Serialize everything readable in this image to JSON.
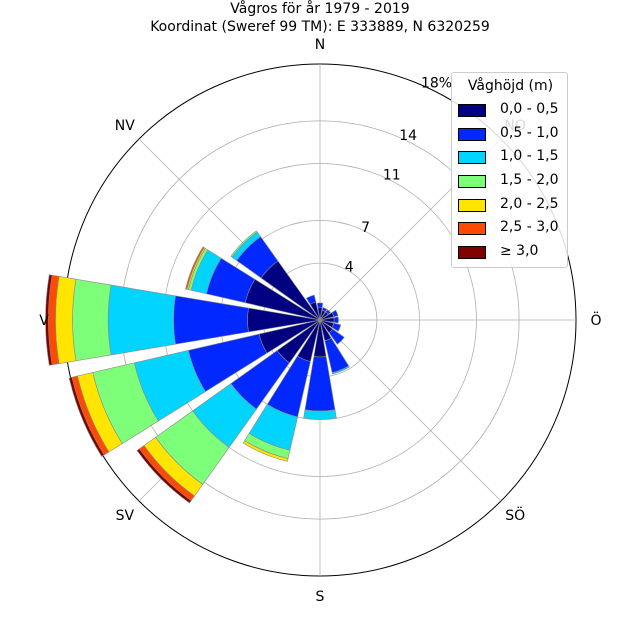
{
  "header": {
    "title": "Vågros för år 1979 - 2019",
    "subtitle": "Koordinat (Sweref 99 TM): E 333889, N 6320259"
  },
  "legend": {
    "title": "Våghöjd (m)",
    "items": [
      {
        "label": "0,0 - 0,5",
        "color": "#000080"
      },
      {
        "label": "0,5 - 1,0",
        "color": "#0028ff"
      },
      {
        "label": "1,0 - 1,5",
        "color": "#00d4ff"
      },
      {
        "label": "1,5 - 2,0",
        "color": "#7dff7a"
      },
      {
        "label": "2,0 - 2,5",
        "color": "#ffe500"
      },
      {
        "label": "2,5 - 3,0",
        "color": "#ff4a00"
      },
      {
        "label": "≥ 3,0",
        "color": "#800000"
      }
    ]
  },
  "chart_data": {
    "type": "windrose",
    "rmax": 18,
    "radial_ticks": [
      {
        "value": 4,
        "label": "4"
      },
      {
        "value": 7,
        "label": "7"
      },
      {
        "value": 11,
        "label": "11"
      },
      {
        "value": 14,
        "label": "14"
      },
      {
        "value": 18,
        "label": "18%"
      }
    ],
    "direction_labels": [
      {
        "angle": 0,
        "label": "N"
      },
      {
        "angle": 45,
        "label": "NO"
      },
      {
        "angle": 90,
        "label": "Ö"
      },
      {
        "angle": 135,
        "label": "SÖ"
      },
      {
        "angle": 180,
        "label": "S"
      },
      {
        "angle": 225,
        "label": "SV"
      },
      {
        "angle": 270,
        "label": "V"
      },
      {
        "angle": 315,
        "label": "NV"
      }
    ],
    "bin_width_deg": 22.5,
    "sector_width_deg": 19,
    "series": [
      "0,0 - 0,5",
      "0,5 - 1,0",
      "1,0 - 1,5",
      "1,5 - 2,0",
      "2,0 - 2,5",
      "2,5 - 3,0",
      "≥ 3,0"
    ],
    "bins": [
      {
        "direction": 0,
        "values": [
          0.9,
          0.3,
          0,
          0,
          0,
          0,
          0
        ]
      },
      {
        "direction": 22.5,
        "values": [
          0.7,
          0.2,
          0,
          0,
          0,
          0,
          0
        ]
      },
      {
        "direction": 45,
        "values": [
          0.7,
          0.2,
          0,
          0,
          0,
          0,
          0
        ]
      },
      {
        "direction": 67.5,
        "values": [
          1.0,
          0.3,
          0,
          0,
          0,
          0,
          0
        ]
      },
      {
        "direction": 90,
        "values": [
          1.0,
          0.3,
          0,
          0,
          0,
          0,
          0
        ]
      },
      {
        "direction": 112.5,
        "values": [
          1.0,
          0.5,
          0,
          0,
          0,
          0,
          0
        ]
      },
      {
        "direction": 135,
        "values": [
          1.1,
          1.0,
          0,
          0,
          0,
          0,
          0
        ]
      },
      {
        "direction": 157.5,
        "values": [
          1.5,
          2.3,
          0.1,
          0,
          0,
          0,
          0
        ]
      },
      {
        "direction": 180,
        "values": [
          2.6,
          3.8,
          0.6,
          0,
          0,
          0,
          0
        ]
      },
      {
        "direction": 202.5,
        "values": [
          3.0,
          4.0,
          2.4,
          0.6,
          0.2,
          0,
          0
        ]
      },
      {
        "direction": 225,
        "values": [
          3.7,
          4.0,
          3.3,
          3.2,
          1.0,
          0.4,
          0.2
        ]
      },
      {
        "direction": 247.5,
        "values": [
          4.4,
          5.1,
          3.9,
          3.0,
          1.1,
          0.4,
          0.2
        ]
      },
      {
        "direction": 270,
        "values": [
          5.1,
          5.2,
          4.6,
          2.5,
          1.2,
          0.5,
          0.2
        ]
      },
      {
        "direction": 292.5,
        "values": [
          5.4,
          2.8,
          1.1,
          0.2,
          0.1,
          0.1,
          0
        ]
      },
      {
        "direction": 315,
        "values": [
          5.1,
          2.1,
          0.4,
          0.1,
          0,
          0,
          0
        ]
      },
      {
        "direction": 337.5,
        "values": [
          1.3,
          0.5,
          0,
          0,
          0,
          0,
          0
        ]
      }
    ],
    "grid": true
  }
}
